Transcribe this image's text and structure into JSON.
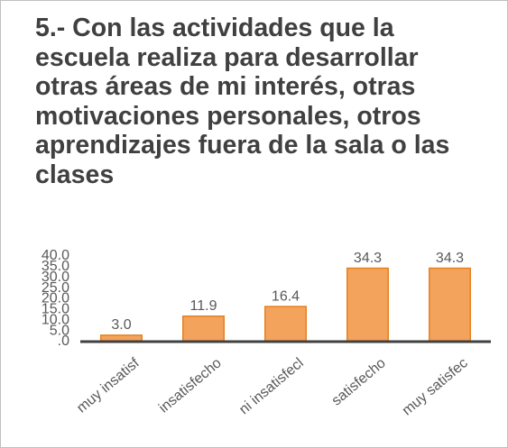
{
  "chart_data": {
    "type": "bar",
    "title": "5.- Con las actividades que la escuela realiza para desarrollar otras áreas de mi interés, otras motivaciones personales, otros aprendizajes fuera de la sala o las clases",
    "categories": [
      "muy insatisf",
      "insatisfecho",
      "ni insatisfecl",
      "satisfecho",
      "muy satisfec"
    ],
    "values": [
      3,
      11.9,
      16.4,
      34.3,
      34.3
    ],
    "value_labels": [
      "3.0",
      "11.9",
      "16.4",
      "34.3",
      "34.3"
    ],
    "color": "#f4a35d",
    "ylim": [
      0,
      40
    ],
    "yticks": [
      {
        "value": 0,
        "label": ".0"
      },
      {
        "value": 5,
        "label": "5.0"
      },
      {
        "value": 10,
        "label": "10.0"
      },
      {
        "value": 15,
        "label": "15.0"
      },
      {
        "value": 20,
        "label": "20.0"
      },
      {
        "value": 25,
        "label": "25.0"
      },
      {
        "value": 30,
        "label": "30.0"
      },
      {
        "value": 35,
        "label": "35.0"
      },
      {
        "value": 40,
        "label": "40.0"
      }
    ],
    "grid": false
  }
}
